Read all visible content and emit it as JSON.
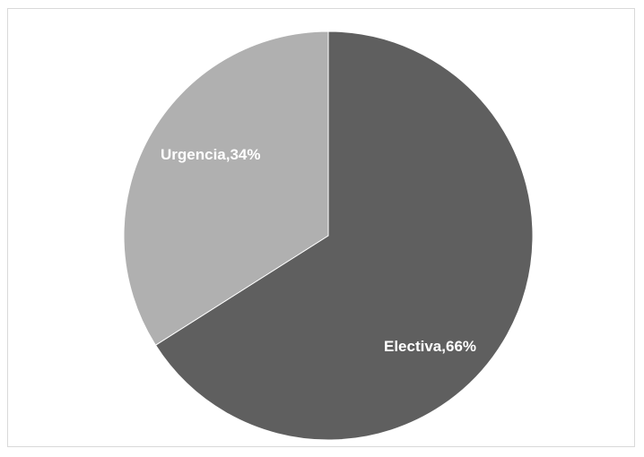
{
  "chart_data": {
    "type": "pie",
    "title": "",
    "slices": [
      {
        "category": "Electiva",
        "value": 66,
        "label": "Electiva,66%",
        "color": "#5f5f5f"
      },
      {
        "category": "Urgencia",
        "value": 34,
        "label": "Urgencia,34%",
        "color": "#b0b0b0"
      }
    ],
    "legend": "none",
    "start_angle": "12 o'clock, clockwise"
  }
}
